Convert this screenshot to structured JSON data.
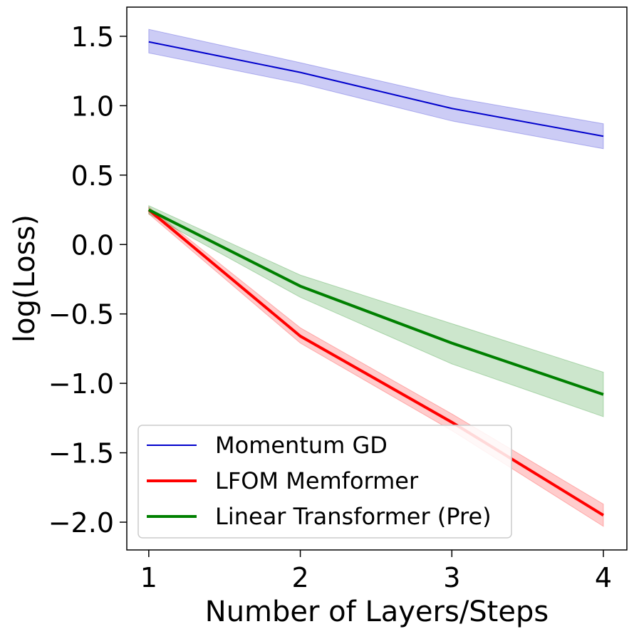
{
  "chart_data": {
    "type": "line",
    "xlabel": "Number of Layers/Steps",
    "ylabel": "log(Loss)",
    "x": [
      1,
      2,
      3,
      4
    ],
    "xlim": [
      0.855,
      4.155
    ],
    "ylim": [
      -2.2,
      1.71
    ],
    "xticks": [
      1,
      2,
      3,
      4
    ],
    "xtick_labels": [
      "1",
      "2",
      "3",
      "4"
    ],
    "yticks": [
      1.5,
      1.0,
      0.5,
      0.0,
      -0.5,
      -1.0,
      -1.5,
      -2.0
    ],
    "ytick_labels": [
      "1.5",
      "1.0",
      "0.5",
      "0.0",
      "−0.5",
      "−1.0",
      "−1.5",
      "−2.0"
    ],
    "grid": false,
    "legend_position": "lower-left",
    "series": [
      {
        "name": "Momentum GD",
        "color": "#0000cc",
        "values": [
          1.46,
          1.24,
          0.98,
          0.78
        ],
        "lower": [
          1.38,
          1.16,
          0.89,
          0.69
        ],
        "upper": [
          1.55,
          1.31,
          1.06,
          0.87
        ]
      },
      {
        "name": "LFOM Memformer",
        "color": "#ff0000",
        "values": [
          0.25,
          -0.66,
          -1.28,
          -1.95
        ],
        "lower": [
          0.22,
          -0.71,
          -1.34,
          -2.03
        ],
        "upper": [
          0.27,
          -0.6,
          -1.22,
          -1.87
        ]
      },
      {
        "name": "Linear Transformer (Pre)",
        "color": "#008000",
        "values": [
          0.25,
          -0.3,
          -0.71,
          -1.08
        ],
        "lower": [
          0.22,
          -0.38,
          -0.86,
          -1.24
        ],
        "upper": [
          0.28,
          -0.22,
          -0.57,
          -0.92
        ]
      }
    ]
  }
}
